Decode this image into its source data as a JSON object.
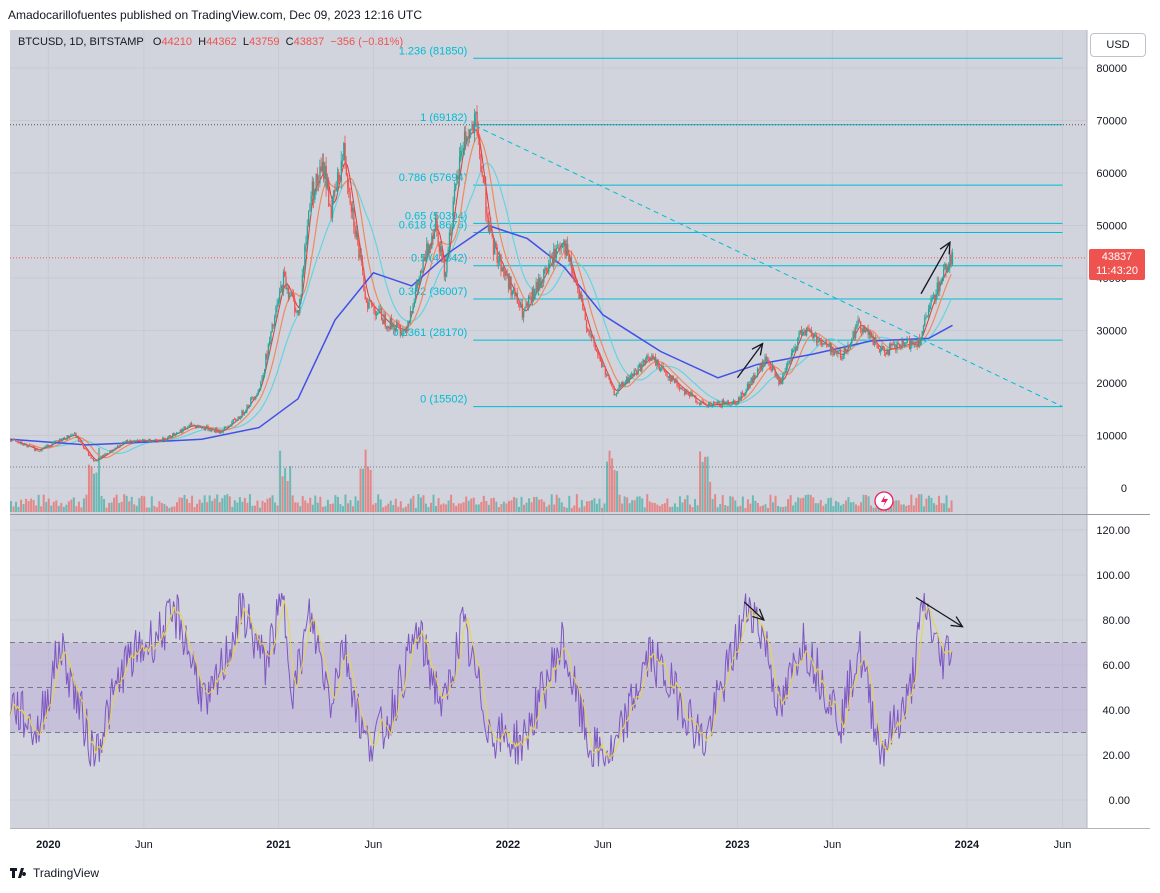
{
  "header": {
    "published": "Amadocarillofuentes published on TradingView.com, Dec 09, 2023 12:16 UTC"
  },
  "symbol": {
    "name": "BTCUSD, 1D, BITSTAMP",
    "o_label": "O",
    "o": "44210",
    "h_label": "H",
    "h": "44362",
    "l_label": "L",
    "l": "43759",
    "c_label": "C",
    "c": "43837",
    "change": "−356 (−0.81%)"
  },
  "currency_button": "USD",
  "price_tag": {
    "price": "43837",
    "countdown": "11:43:20",
    "color": "#ef5350"
  },
  "footer": {
    "brand": "TradingView"
  },
  "colors": {
    "fib": "#00bcd4",
    "ma_long": "#3f51e6",
    "ma_mid": "#67d3e0",
    "ma_fast": "#f08a5d",
    "ma_red": "#e53935",
    "rsi": "#7e57c2",
    "rsi_ma": "#e8d54a",
    "up": "#26a69a",
    "down": "#ef5350"
  },
  "chart_data": [
    {
      "type": "candlestick",
      "y_ticks": [
        "80000",
        "70000",
        "60000",
        "50000",
        "40000",
        "30000",
        "20000",
        "10000",
        "0"
      ],
      "ylim": [
        0,
        84000
      ],
      "x_ticks": [
        {
          "label": "2020",
          "date": "2020-01-01"
        },
        {
          "label": "Jun",
          "date": "2020-06-01"
        },
        {
          "label": "2021",
          "date": "2021-01-01"
        },
        {
          "label": "Jun",
          "date": "2021-06-01"
        },
        {
          "label": "2022",
          "date": "2022-01-01"
        },
        {
          "label": "Jun",
          "date": "2022-06-01"
        },
        {
          "label": "2023",
          "date": "2023-01-01"
        },
        {
          "label": "Jun",
          "date": "2023-06-01"
        },
        {
          "label": "2024",
          "date": "2024-01-01"
        },
        {
          "label": "Jun",
          "date": "2024-06-01"
        }
      ],
      "fib_levels": [
        {
          "label": "1.236 (81850)",
          "value": 81850
        },
        {
          "label": "1 (69182)",
          "value": 69182
        },
        {
          "label": "0.786 (57694)",
          "value": 57694
        },
        {
          "label": "0.65 (50394)",
          "value": 50394
        },
        {
          "label": "0.618 (48676)",
          "value": 48676
        },
        {
          "label": "0.5 (42342)",
          "value": 42342
        },
        {
          "label": "0.382 (36007)",
          "value": 36007
        },
        {
          "label": "0.2361 (28170)",
          "value": 28170
        },
        {
          "label": "0 (15502)",
          "value": 15502
        }
      ],
      "price_path": [
        [
          "2019-11-01",
          9200
        ],
        [
          "2019-12-15",
          7200
        ],
        [
          "2020-02-10",
          10300
        ],
        [
          "2020-03-13",
          5000
        ],
        [
          "2020-05-01",
          8800
        ],
        [
          "2020-07-01",
          9200
        ],
        [
          "2020-08-15",
          12000
        ],
        [
          "2020-10-01",
          10700
        ],
        [
          "2020-11-01",
          13800
        ],
        [
          "2020-12-01",
          19000
        ],
        [
          "2021-01-08",
          40000
        ],
        [
          "2021-02-01",
          33000
        ],
        [
          "2021-02-20",
          56000
        ],
        [
          "2021-03-14",
          61000
        ],
        [
          "2021-03-25",
          52500
        ],
        [
          "2021-04-14",
          64000
        ],
        [
          "2021-05-19",
          36000
        ],
        [
          "2021-06-22",
          31500
        ],
        [
          "2021-07-20",
          29800
        ],
        [
          "2021-09-07",
          51000
        ],
        [
          "2021-09-21",
          41000
        ],
        [
          "2021-10-20",
          66000
        ],
        [
          "2021-11-10",
          69000
        ],
        [
          "2021-12-04",
          47000
        ],
        [
          "2022-01-24",
          33000
        ],
        [
          "2022-03-28",
          47500
        ],
        [
          "2022-05-12",
          28500
        ],
        [
          "2022-06-18",
          18000
        ],
        [
          "2022-08-14",
          25000
        ],
        [
          "2022-10-01",
          19200
        ],
        [
          "2022-11-09",
          15600
        ],
        [
          "2022-12-31",
          16500
        ],
        [
          "2023-02-15",
          24500
        ],
        [
          "2023-03-10",
          19800
        ],
        [
          "2023-04-14",
          30500
        ],
        [
          "2023-06-15",
          25000
        ],
        [
          "2023-07-13",
          31500
        ],
        [
          "2023-08-17",
          26000
        ],
        [
          "2023-10-16",
          28000
        ],
        [
          "2023-11-10",
          37000
        ],
        [
          "2023-12-05",
          44000
        ],
        [
          "2023-12-09",
          43837
        ]
      ],
      "ma_long": [
        [
          "2019-11-01",
          9300
        ],
        [
          "2020-03-01",
          8200
        ],
        [
          "2020-06-01",
          8700
        ],
        [
          "2020-09-01",
          9300
        ],
        [
          "2020-12-01",
          11500
        ],
        [
          "2021-02-01",
          17000
        ],
        [
          "2021-04-01",
          32000
        ],
        [
          "2021-06-01",
          41000
        ],
        [
          "2021-08-01",
          38500
        ],
        [
          "2021-10-01",
          45000
        ],
        [
          "2021-12-01",
          50000
        ],
        [
          "2022-02-01",
          47500
        ],
        [
          "2022-04-01",
          42000
        ],
        [
          "2022-06-01",
          33000
        ],
        [
          "2022-09-01",
          26000
        ],
        [
          "2022-12-01",
          21000
        ],
        [
          "2023-02-01",
          23500
        ],
        [
          "2023-05-01",
          25500
        ],
        [
          "2023-08-01",
          28000
        ],
        [
          "2023-11-01",
          28500
        ],
        [
          "2023-12-09",
          31000
        ]
      ],
      "volume_spikes": [
        "2020-03-13",
        "2021-01-11",
        "2021-05-19",
        "2022-06-13",
        "2022-11-09"
      ],
      "trendline": [
        [
          "2021-11-10",
          69000
        ],
        [
          "2024-06-01",
          15500
        ]
      ],
      "annotations": [
        {
          "type": "arrow",
          "from": [
            "2023-10-20",
            37000
          ],
          "to": [
            "2023-12-05",
            46800
          ]
        },
        {
          "type": "arrow",
          "from": [
            "2023-01-01",
            21000
          ],
          "to": [
            "2023-02-10",
            27500
          ]
        }
      ]
    },
    {
      "type": "line",
      "y_ticks": [
        "120.00",
        "100.00",
        "80.00",
        "60.00",
        "40.00",
        "20.00",
        "0.00"
      ],
      "ylim": [
        -4,
        126
      ],
      "band": [
        30,
        70
      ],
      "midline": 50,
      "rsi_path": [
        [
          "2019-11-01",
          44
        ],
        [
          "2019-12-15",
          30
        ],
        [
          "2020-01-20",
          69
        ],
        [
          "2020-03-13",
          20
        ],
        [
          "2020-05-01",
          60
        ],
        [
          "2020-07-25",
          82
        ],
        [
          "2020-09-10",
          40
        ],
        [
          "2020-11-05",
          85
        ],
        [
          "2020-12-10",
          60
        ],
        [
          "2021-01-08",
          88
        ],
        [
          "2021-01-25",
          48
        ],
        [
          "2021-02-20",
          82
        ],
        [
          "2021-03-25",
          45
        ],
        [
          "2021-04-14",
          70
        ],
        [
          "2021-05-19",
          25
        ],
        [
          "2021-06-22",
          33
        ],
        [
          "2021-08-10",
          75
        ],
        [
          "2021-09-21",
          40
        ],
        [
          "2021-10-20",
          78
        ],
        [
          "2021-12-04",
          30
        ],
        [
          "2022-01-24",
          25
        ],
        [
          "2022-03-28",
          70
        ],
        [
          "2022-05-12",
          22
        ],
        [
          "2022-06-18",
          20
        ],
        [
          "2022-08-14",
          65
        ],
        [
          "2022-10-01",
          45
        ],
        [
          "2022-11-09",
          25
        ],
        [
          "2023-01-20",
          88
        ],
        [
          "2023-02-15",
          70
        ],
        [
          "2023-03-10",
          38
        ],
        [
          "2023-04-14",
          72
        ],
        [
          "2023-06-15",
          35
        ],
        [
          "2023-07-13",
          68
        ],
        [
          "2023-08-17",
          22
        ],
        [
          "2023-10-01",
          45
        ],
        [
          "2023-10-25",
          88
        ],
        [
          "2023-11-20",
          62
        ],
        [
          "2023-12-09",
          70
        ]
      ],
      "annotations": [
        {
          "type": "arrow",
          "from": [
            "2023-01-12",
            88
          ],
          "to": [
            "2023-02-12",
            80
          ]
        },
        {
          "type": "arrow",
          "from": [
            "2023-10-12",
            90
          ],
          "to": [
            "2023-12-25",
            77
          ]
        }
      ]
    }
  ]
}
